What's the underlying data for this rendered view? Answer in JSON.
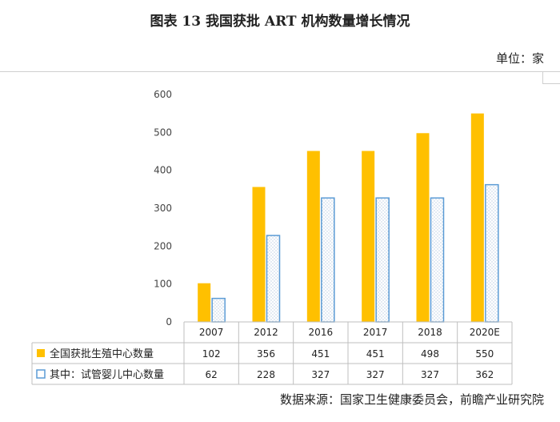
{
  "figure": {
    "title": "图表 13   我国获批 ART 机构数量增长情况",
    "unit": "单位：家",
    "source": "数据来源：国家卫生健康委员会，前瞻产业研究院"
  },
  "colors": {
    "series1": "#FFC000",
    "series2": "#5B9BD5",
    "axis": "#BFBFBF",
    "grid": "#D9D9D9"
  },
  "chart_data": {
    "type": "bar",
    "categories": [
      "2007",
      "2012",
      "2016",
      "2017",
      "2018",
      "2020E"
    ],
    "series": [
      {
        "name": "全国获批生殖中心数量",
        "values": [
          102,
          356,
          451,
          451,
          498,
          550
        ]
      },
      {
        "name": "其中：试管婴儿中心数量",
        "values": [
          62,
          228,
          327,
          327,
          327,
          362
        ]
      }
    ],
    "ylim": [
      0,
      600
    ],
    "yticks": [
      0,
      100,
      200,
      300,
      400,
      500,
      600
    ],
    "grid": false,
    "legend": "data-table-left"
  }
}
